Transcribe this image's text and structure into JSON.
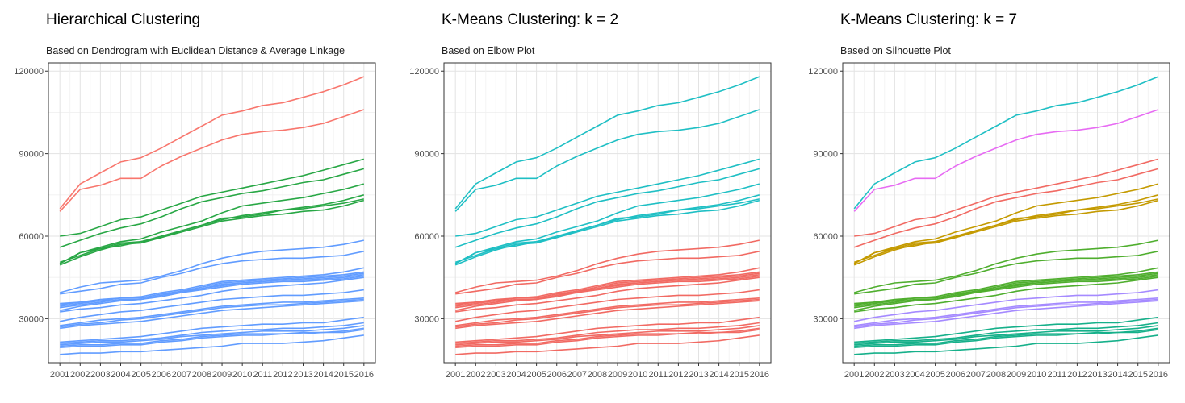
{
  "chart_data": [
    {
      "type": "line",
      "title": "Hierarchical Clustering",
      "subtitle": "Based on Dendrogram with Euclidean Distance & Average Linkage",
      "xlabel": "",
      "ylabel": "",
      "grid": true,
      "legend": "none",
      "ylim": [
        14000,
        123000
      ],
      "x": [
        2001,
        2002,
        2003,
        2004,
        2005,
        2006,
        2007,
        2008,
        2009,
        2010,
        2011,
        2012,
        2013,
        2014,
        2015,
        2016
      ],
      "yticks": [
        30000,
        60000,
        90000,
        120000
      ],
      "assignment": [
        0,
        0,
        1,
        1,
        1,
        1,
        1,
        1,
        2,
        2,
        2,
        2,
        2,
        2,
        2,
        2,
        2,
        2,
        2,
        2,
        2,
        2,
        2,
        2,
        2,
        2
      ],
      "colors": [
        "#F8766D",
        "#28A745",
        "#619CFF"
      ]
    },
    {
      "type": "line",
      "title": "K-Means Clustering: k = 2",
      "subtitle": "Based on Elbow Plot",
      "xlabel": "",
      "ylabel": "",
      "grid": true,
      "legend": "none",
      "ylim": [
        14000,
        123000
      ],
      "x": [
        2001,
        2002,
        2003,
        2004,
        2005,
        2006,
        2007,
        2008,
        2009,
        2010,
        2011,
        2012,
        2013,
        2014,
        2015,
        2016
      ],
      "yticks": [
        30000,
        60000,
        90000,
        120000
      ],
      "assignment": [
        0,
        0,
        0,
        0,
        0,
        0,
        0,
        0,
        1,
        1,
        1,
        1,
        1,
        1,
        1,
        1,
        1,
        1,
        1,
        1,
        1,
        1,
        1,
        1,
        1,
        1
      ],
      "colors": [
        "#1FBFC4",
        "#F16A63"
      ]
    },
    {
      "type": "line",
      "title": "K-Means Clustering: k = 7",
      "subtitle": "Based on Silhouette Plot",
      "xlabel": "",
      "ylabel": "",
      "grid": true,
      "legend": "none",
      "ylim": [
        14000,
        123000
      ],
      "x": [
        2001,
        2002,
        2003,
        2004,
        2005,
        2006,
        2007,
        2008,
        2009,
        2010,
        2011,
        2012,
        2013,
        2014,
        2015,
        2016
      ],
      "yticks": [
        30000,
        60000,
        90000,
        120000
      ],
      "assignment": [
        0,
        1,
        2,
        2,
        3,
        3,
        3,
        3,
        4,
        4,
        4,
        4,
        4,
        4,
        4,
        4,
        5,
        5,
        5,
        5,
        6,
        6,
        6,
        6,
        6,
        6
      ],
      "colors": [
        "#1FBFC4",
        "#E76BF3",
        "#F16A63",
        "#C49A00",
        "#4FAE2E",
        "#A58AFF",
        "#16B08A"
      ]
    }
  ],
  "series": [
    [
      70000,
      79000,
      83000,
      87000,
      88500,
      92000,
      96000,
      100000,
      104000,
      105500,
      107500,
      108500,
      110500,
      112500,
      115000,
      118000
    ],
    [
      69000,
      77000,
      78500,
      81000,
      81000,
      85500,
      89000,
      92000,
      95000,
      97000,
      98000,
      98500,
      99500,
      101000,
      103500,
      106000
    ],
    [
      60000,
      61000,
      63500,
      66000,
      67000,
      69500,
      72000,
      74500,
      76000,
      77500,
      79000,
      80500,
      82000,
      84000,
      86000,
      88000
    ],
    [
      56000,
      58500,
      61000,
      63000,
      64500,
      67000,
      70000,
      72500,
      74000,
      75500,
      76500,
      78000,
      79500,
      80500,
      82500,
      84500
    ],
    [
      50000,
      54000,
      56000,
      58000,
      59000,
      61500,
      63500,
      65500,
      68500,
      71000,
      72000,
      73000,
      74000,
      75500,
      77000,
      79000
    ],
    [
      50500,
      53000,
      55500,
      57500,
      58000,
      59500,
      62000,
      64000,
      66000,
      67500,
      68500,
      69500,
      70500,
      71500,
      73000,
      75000
    ],
    [
      49500,
      52500,
      55000,
      57000,
      57500,
      59500,
      61500,
      63500,
      65500,
      66500,
      67500,
      68000,
      69000,
      69500,
      71000,
      73000
    ],
    [
      50000,
      54000,
      55500,
      56500,
      58000,
      60000,
      62000,
      64000,
      66500,
      67000,
      68000,
      69500,
      70000,
      71000,
      72000,
      73500
    ],
    [
      39500,
      41500,
      43000,
      43500,
      44000,
      45500,
      47500,
      50000,
      52000,
      53500,
      54500,
      55000,
      55500,
      56000,
      57000,
      58500
    ],
    [
      39000,
      40000,
      41000,
      42500,
      43000,
      45000,
      46500,
      48500,
      50000,
      51000,
      51500,
      52000,
      52000,
      52500,
      53000,
      54500
    ],
    [
      35000,
      36000,
      37000,
      37500,
      38000,
      39500,
      40500,
      42000,
      43500,
      44000,
      44500,
      45000,
      45500,
      46000,
      47000,
      48500
    ],
    [
      34500,
      35500,
      36500,
      37500,
      37500,
      39000,
      40000,
      41500,
      43000,
      43500,
      44000,
      44500,
      45000,
      45500,
      46000,
      47000
    ],
    [
      34000,
      35000,
      36000,
      37000,
      37000,
      38500,
      40000,
      41000,
      42500,
      43000,
      43500,
      44000,
      44500,
      45000,
      45500,
      46500
    ],
    [
      33000,
      34500,
      35500,
      36500,
      37000,
      38000,
      39500,
      41000,
      42000,
      43000,
      43500,
      44000,
      44000,
      44500,
      45000,
      46000
    ],
    [
      35500,
      36000,
      36500,
      36500,
      37000,
      38500,
      39500,
      40500,
      41500,
      42500,
      43000,
      43500,
      43500,
      44000,
      44500,
      45500
    ],
    [
      32500,
      33500,
      34000,
      35000,
      35500,
      36500,
      37500,
      38500,
      40000,
      41000,
      41500,
      42000,
      42500,
      43000,
      44000,
      45000
    ],
    [
      29000,
      30500,
      31500,
      32500,
      33000,
      34000,
      35000,
      36000,
      37000,
      37500,
      38000,
      38500,
      38500,
      39000,
      39500,
      40500
    ],
    [
      27500,
      28500,
      29500,
      30000,
      30500,
      31500,
      32500,
      33500,
      34500,
      35000,
      35500,
      36000,
      36000,
      36500,
      37000,
      37500
    ],
    [
      27000,
      28000,
      28500,
      29500,
      30000,
      31000,
      32000,
      33000,
      34000,
      34500,
      35000,
      35000,
      35500,
      36000,
      36500,
      37000
    ],
    [
      26500,
      27500,
      28000,
      28500,
      29000,
      30000,
      31000,
      32000,
      33000,
      33500,
      34000,
      34500,
      35000,
      35500,
      36000,
      36500
    ],
    [
      21500,
      22000,
      22500,
      23000,
      23500,
      24500,
      25500,
      26500,
      27000,
      27500,
      28000,
      28000,
      28500,
      28500,
      29500,
      30500
    ],
    [
      21000,
      21500,
      22000,
      22000,
      22500,
      23000,
      24000,
      25000,
      25500,
      26000,
      26000,
      26500,
      26500,
      27000,
      27500,
      28500
    ],
    [
      20500,
      21000,
      21500,
      21500,
      22000,
      22500,
      23500,
      24000,
      24500,
      25000,
      25500,
      25500,
      25500,
      26000,
      26500,
      27500
    ],
    [
      20000,
      20500,
      20500,
      21000,
      21000,
      22000,
      22500,
      23500,
      24000,
      24500,
      24500,
      24500,
      25000,
      25000,
      25500,
      26500
    ],
    [
      19500,
      20000,
      20000,
      20500,
      20500,
      21500,
      22000,
      23000,
      23500,
      24000,
      24000,
      24500,
      24500,
      25000,
      25000,
      26000
    ],
    [
      17000,
      17500,
      17500,
      18000,
      18000,
      18500,
      19000,
      19500,
      20000,
      21000,
      21000,
      21000,
      21500,
      22000,
      23000,
      24000
    ]
  ]
}
